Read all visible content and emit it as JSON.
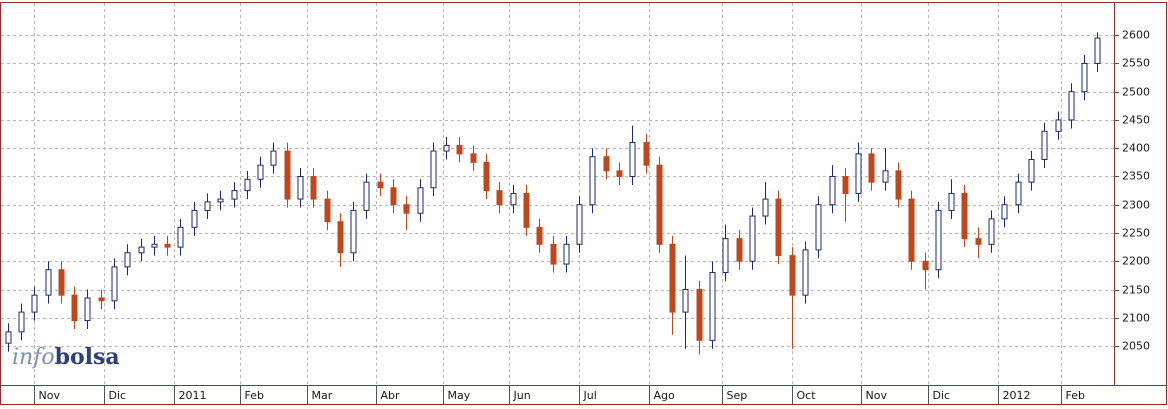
{
  "chart_data": {
    "type": "candlestick",
    "grid": true,
    "up_color": "#1f2a6e",
    "down_color": "#c0461c",
    "watermark": [
      "info",
      "bolsa"
    ],
    "xlim": [
      0,
      335
    ],
    "xticks": [
      {
        "value": 10,
        "label": "Nov"
      },
      {
        "value": 31,
        "label": "Dic"
      },
      {
        "value": 52,
        "label": "2011"
      },
      {
        "value": 72,
        "label": "Feb"
      },
      {
        "value": 92,
        "label": "Mar"
      },
      {
        "value": 113,
        "label": "Abr"
      },
      {
        "value": 133,
        "label": "May"
      },
      {
        "value": 153,
        "label": "Jun"
      },
      {
        "value": 174,
        "label": "Jul"
      },
      {
        "value": 195,
        "label": "Ago"
      },
      {
        "value": 217,
        "label": "Sep"
      },
      {
        "value": 238,
        "label": "Oct"
      },
      {
        "value": 259,
        "label": "Nov"
      },
      {
        "value": 279,
        "label": "Dic"
      },
      {
        "value": 300,
        "label": "2012"
      },
      {
        "value": 319,
        "label": "Feb"
      }
    ],
    "ylim": [
      1981,
      2657
    ],
    "yticks": [
      2050,
      2100,
      2150,
      2200,
      2250,
      2300,
      2350,
      2400,
      2450,
      2500,
      2550,
      2600
    ],
    "x": [
      2,
      6,
      10,
      14,
      18,
      22,
      26,
      30,
      34,
      38,
      42,
      46,
      50,
      54,
      58,
      62,
      66,
      70,
      74,
      78,
      82,
      86,
      90,
      94,
      98,
      102,
      106,
      110,
      114,
      118,
      122,
      126,
      130,
      134,
      138,
      142,
      146,
      150,
      154,
      158,
      162,
      166,
      170,
      174,
      178,
      182,
      186,
      190,
      194,
      198,
      202,
      206,
      210,
      214,
      218,
      222,
      226,
      230,
      234,
      238,
      242,
      246,
      250,
      254,
      258,
      262,
      266,
      270,
      274,
      278,
      282,
      286,
      290,
      294,
      298,
      302,
      306,
      310,
      314,
      318,
      322,
      326,
      330
    ],
    "open": [
      2055,
      2075,
      2110,
      2140,
      2185,
      2140,
      2095,
      2135,
      2130,
      2190,
      2215,
      2225,
      2230,
      2225,
      2260,
      2290,
      2305,
      2310,
      2325,
      2345,
      2370,
      2395,
      2310,
      2350,
      2310,
      2270,
      2215,
      2290,
      2340,
      2330,
      2300,
      2285,
      2330,
      2395,
      2405,
      2390,
      2375,
      2325,
      2300,
      2320,
      2260,
      2230,
      2195,
      2230,
      2300,
      2385,
      2360,
      2350,
      2410,
      2370,
      2230,
      2110,
      2150,
      2060,
      2180,
      2240,
      2200,
      2280,
      2310,
      2210,
      2140,
      2220,
      2300,
      2350,
      2320,
      2390,
      2340,
      2360,
      2310,
      2200,
      2185,
      2290,
      2320,
      2240,
      2230,
      2275,
      2300,
      2340,
      2380,
      2430,
      2450,
      2500,
      2550
    ],
    "high": [
      2090,
      2125,
      2155,
      2200,
      2200,
      2155,
      2150,
      2150,
      2205,
      2230,
      2240,
      2245,
      2245,
      2275,
      2305,
      2320,
      2325,
      2340,
      2360,
      2385,
      2410,
      2410,
      2365,
      2365,
      2325,
      2285,
      2305,
      2355,
      2355,
      2345,
      2315,
      2345,
      2410,
      2420,
      2420,
      2405,
      2390,
      2340,
      2335,
      2335,
      2275,
      2245,
      2245,
      2315,
      2400,
      2400,
      2375,
      2440,
      2425,
      2385,
      2245,
      2210,
      2165,
      2200,
      2265,
      2255,
      2295,
      2340,
      2325,
      2225,
      2235,
      2315,
      2370,
      2365,
      2410,
      2400,
      2400,
      2375,
      2325,
      2215,
      2305,
      2345,
      2335,
      2260,
      2290,
      2315,
      2355,
      2395,
      2445,
      2465,
      2515,
      2565,
      2605
    ],
    "low": [
      2040,
      2060,
      2095,
      2125,
      2125,
      2080,
      2080,
      2115,
      2115,
      2175,
      2200,
      2210,
      2210,
      2210,
      2245,
      2275,
      2290,
      2295,
      2310,
      2330,
      2355,
      2295,
      2295,
      2295,
      2255,
      2190,
      2200,
      2275,
      2315,
      2285,
      2255,
      2270,
      2315,
      2380,
      2375,
      2360,
      2310,
      2285,
      2285,
      2245,
      2215,
      2180,
      2180,
      2215,
      2285,
      2345,
      2335,
      2335,
      2355,
      2215,
      2070,
      2045,
      2035,
      2045,
      2165,
      2185,
      2185,
      2265,
      2195,
      2045,
      2125,
      2205,
      2285,
      2270,
      2305,
      2325,
      2325,
      2295,
      2185,
      2150,
      2170,
      2275,
      2225,
      2205,
      2215,
      2260,
      2285,
      2325,
      2365,
      2415,
      2435,
      2485,
      2535
    ],
    "close": [
      2075,
      2110,
      2140,
      2185,
      2140,
      2095,
      2135,
      2130,
      2190,
      2215,
      2225,
      2230,
      2225,
      2260,
      2290,
      2305,
      2310,
      2325,
      2345,
      2370,
      2395,
      2310,
      2350,
      2310,
      2270,
      2215,
      2290,
      2340,
      2330,
      2300,
      2285,
      2330,
      2395,
      2405,
      2390,
      2375,
      2325,
      2300,
      2320,
      2260,
      2230,
      2195,
      2230,
      2300,
      2385,
      2360,
      2350,
      2410,
      2370,
      2230,
      2110,
      2150,
      2060,
      2180,
      2240,
      2200,
      2280,
      2310,
      2210,
      2140,
      2220,
      2300,
      2350,
      2320,
      2390,
      2340,
      2360,
      2310,
      2200,
      2185,
      2290,
      2320,
      2240,
      2230,
      2275,
      2300,
      2340,
      2380,
      2430,
      2450,
      2500,
      2550,
      2595
    ]
  }
}
